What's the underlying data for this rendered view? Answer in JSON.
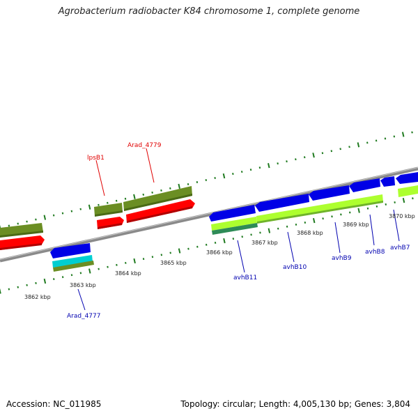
{
  "title": "Agrobacterium radiobacter K84 chromosome 1, complete genome",
  "footer": {
    "accession": "Accession: NC_011985",
    "summary": "Topology: circular; Length: 4,005,130 bp; Genes: 3,804"
  },
  "colors": {
    "background": "#ffffff",
    "backbone": "#8a8a8a",
    "scale_ticks": "#1f7a1f",
    "forward_label": "#e00000",
    "reverse_label": "#0000b0",
    "gene_olive": "#6b8e23",
    "gene_red": "#ff0000",
    "gene_blue": "#0000e6",
    "gene_lime": "#adff2f",
    "gene_cyan": "#00ced1",
    "gene_darkgreen": "#2e8b57"
  },
  "scale_labels": [
    "3862 kbp",
    "3863 kbp",
    "3864 kbp",
    "3865 kbp",
    "3866 kbp",
    "3867 kbp",
    "3868 kbp",
    "3869 kbp",
    "3870 kbp"
  ],
  "forward_genes": [
    {
      "name": "lpsB1",
      "color": "red"
    },
    {
      "name": "Arad_4779",
      "color": "red"
    }
  ],
  "reverse_genes": [
    {
      "name": "Arad_4777",
      "color": "blue"
    },
    {
      "name": "avhB11",
      "color": "blue"
    },
    {
      "name": "avhB10",
      "color": "blue"
    },
    {
      "name": "avhB9",
      "color": "blue"
    },
    {
      "name": "avhB8",
      "color": "blue"
    },
    {
      "name": "avhB7",
      "color": "blue"
    }
  ]
}
